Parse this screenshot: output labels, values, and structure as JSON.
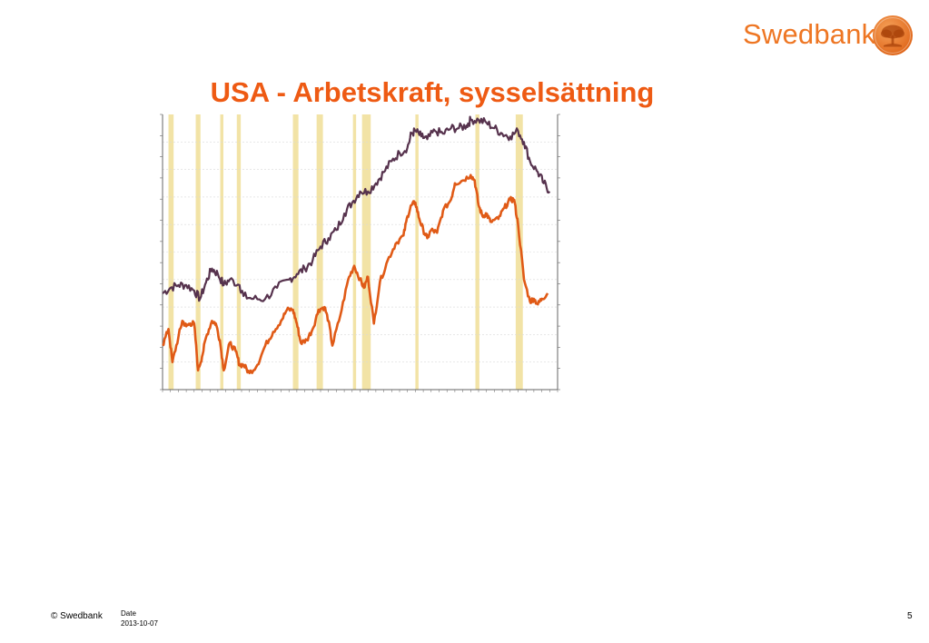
{
  "brand": {
    "name": "Swedbank",
    "color": "#ee7623",
    "seal_icon": "oak-tree-seal-icon"
  },
  "slide": {
    "title": "USA - Arbetskraft, sysselsättning",
    "title_color": "#ee5a13"
  },
  "footer": {
    "copyright": "© Swedbank",
    "date_label": "Date",
    "date": "2013-10-07",
    "page_number": "5"
  },
  "chart_data": {
    "type": "line",
    "title": "",
    "xlabel": "",
    "ylabel": "",
    "tick_labels_legible": false,
    "grid": true,
    "colors": {
      "recession": "#f2e3a6",
      "axis": "#666666",
      "grid": "#d9d9d9"
    },
    "x_range": [
      0,
      100
    ],
    "y_range": [
      0,
      100
    ],
    "recession_bands": [
      [
        1.5,
        2.8
      ],
      [
        8.4,
        9.6
      ],
      [
        14.6,
        15.4
      ],
      [
        18.8,
        19.8
      ],
      [
        33.0,
        34.4
      ],
      [
        39.0,
        40.6
      ],
      [
        48.2,
        49.0
      ],
      [
        50.5,
        52.7
      ],
      [
        64.0,
        64.8
      ],
      [
        79.2,
        80.2
      ],
      [
        89.4,
        91.2
      ]
    ],
    "series": [
      {
        "color": "#56324d",
        "points": [
          [
            0,
            35
          ],
          [
            2,
            37
          ],
          [
            4,
            38
          ],
          [
            6,
            38
          ],
          [
            8,
            36
          ],
          [
            9.5,
            33
          ],
          [
            11,
            39
          ],
          [
            12.5,
            44
          ],
          [
            14,
            42
          ],
          [
            15.5,
            38
          ],
          [
            17,
            40
          ],
          [
            19.5,
            38
          ],
          [
            20.5,
            34
          ],
          [
            23,
            33
          ],
          [
            26,
            33
          ],
          [
            29,
            37
          ],
          [
            32,
            40
          ],
          [
            34,
            42
          ],
          [
            36,
            44
          ],
          [
            38,
            47
          ],
          [
            40,
            52
          ],
          [
            42,
            55
          ],
          [
            44,
            58
          ],
          [
            46,
            64
          ],
          [
            48,
            68
          ],
          [
            50,
            72
          ],
          [
            52,
            72
          ],
          [
            54,
            75
          ],
          [
            56,
            79
          ],
          [
            58,
            83
          ],
          [
            60,
            86
          ],
          [
            62,
            88
          ],
          [
            63,
            93
          ],
          [
            64,
            94
          ],
          [
            65.5,
            92
          ],
          [
            67,
            91
          ],
          [
            69,
            94
          ],
          [
            71,
            93
          ],
          [
            73,
            95
          ],
          [
            75,
            95
          ],
          [
            77,
            96
          ],
          [
            78,
            98
          ],
          [
            80,
            98
          ],
          [
            82,
            97
          ],
          [
            84,
            95
          ],
          [
            86,
            93
          ],
          [
            88,
            92
          ],
          [
            90,
            94
          ],
          [
            91.5,
            90
          ],
          [
            93,
            83
          ],
          [
            95,
            79
          ],
          [
            96.5,
            75
          ],
          [
            98,
            72
          ]
        ]
      },
      {
        "color": "#e05a16",
        "points": [
          [
            0,
            16
          ],
          [
            1.5,
            22
          ],
          [
            2.5,
            10
          ],
          [
            4,
            19
          ],
          [
            5,
            25
          ],
          [
            6,
            23
          ],
          [
            7,
            24
          ],
          [
            8,
            24
          ],
          [
            9,
            7
          ],
          [
            10,
            12
          ],
          [
            11,
            19
          ],
          [
            12.5,
            25
          ],
          [
            13.5,
            24
          ],
          [
            14.5,
            18
          ],
          [
            15.5,
            7
          ],
          [
            17,
            17
          ],
          [
            18.5,
            14
          ],
          [
            19.5,
            9
          ],
          [
            20.5,
            9
          ],
          [
            22,
            6
          ],
          [
            24,
            9
          ],
          [
            26,
            16
          ],
          [
            28,
            21
          ],
          [
            30,
            25
          ],
          [
            31.5,
            29
          ],
          [
            33,
            29
          ],
          [
            34,
            24
          ],
          [
            35,
            17
          ],
          [
            36.5,
            18
          ],
          [
            38,
            22
          ],
          [
            39.5,
            29
          ],
          [
            41,
            30
          ],
          [
            42,
            25
          ],
          [
            43,
            16
          ],
          [
            45,
            27
          ],
          [
            47,
            40
          ],
          [
            48.5,
            45
          ],
          [
            50,
            40
          ],
          [
            51,
            37
          ],
          [
            52,
            41
          ],
          [
            53.5,
            24
          ],
          [
            55,
            39
          ],
          [
            57,
            47
          ],
          [
            59,
            53
          ],
          [
            61,
            56
          ],
          [
            62,
            63
          ],
          [
            63,
            67
          ],
          [
            64,
            68
          ],
          [
            65,
            62
          ],
          [
            66,
            58
          ],
          [
            67,
            55
          ],
          [
            68,
            58
          ],
          [
            69.5,
            57
          ],
          [
            71,
            65
          ],
          [
            73,
            69
          ],
          [
            74,
            75
          ],
          [
            76,
            76
          ],
          [
            78,
            78
          ],
          [
            79,
            76
          ],
          [
            80,
            67
          ],
          [
            81,
            63
          ],
          [
            82,
            64
          ],
          [
            83,
            61
          ],
          [
            85,
            62
          ],
          [
            86.5,
            66
          ],
          [
            88,
            69
          ],
          [
            89,
            69
          ],
          [
            90,
            60
          ],
          [
            91.5,
            40
          ],
          [
            93,
            32
          ],
          [
            94,
            33
          ],
          [
            95,
            31
          ],
          [
            96,
            33
          ],
          [
            97.5,
            35
          ]
        ]
      }
    ]
  }
}
